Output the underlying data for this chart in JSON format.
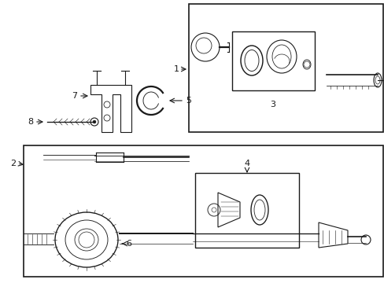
{
  "bg_color": "#ffffff",
  "line_color": "#1a1a1a",
  "gray": "#888888",
  "darkgray": "#555555"
}
